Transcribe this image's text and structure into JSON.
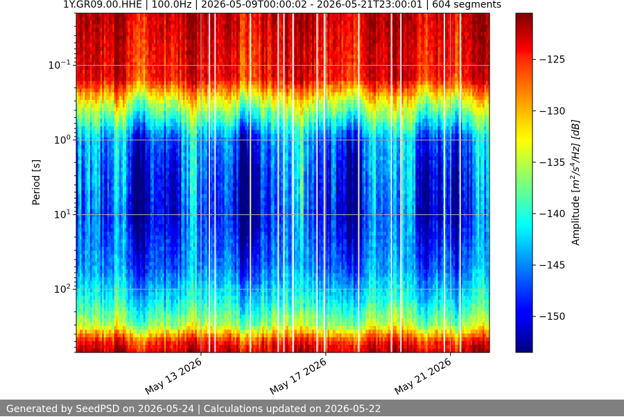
{
  "chart_data": {
    "type": "heatmap",
    "title": "1Y.GR09.00.HHE | 100.0Hz | 2026-05-09T00:00:02 - 2026-05-21T23:00:01 | 604 segments",
    "xlabel": "",
    "ylabel": "Period [s]",
    "x_range": [
      "2026-05-09",
      "2026-05-22T06:00"
    ],
    "x_ticks": [
      {
        "date": "2026-05-13",
        "label": "May 13 2026"
      },
      {
        "date": "2026-05-17",
        "label": "May 17 2026"
      },
      {
        "date": "2026-05-21",
        "label": "May 21 2026"
      }
    ],
    "y_scale": "log",
    "y_inverted": true,
    "y_range": [
      0.02,
      700
    ],
    "y_ticks": [
      {
        "value": 0.1,
        "base": "10",
        "exp": "−1"
      },
      {
        "value": 1,
        "base": "10",
        "exp": "0"
      },
      {
        "value": 10,
        "base": "10",
        "exp": "1"
      },
      {
        "value": 100,
        "base": "10",
        "exp": "2"
      }
    ],
    "grid": true,
    "colormap": "jet",
    "colorbar": {
      "label_prefix": "Amplitude [",
      "label_math": "m",
      "label_sup1": "2",
      "label_mid": "/s",
      "label_sup2": "4",
      "label_suffix": "/Hz] [dB]",
      "range": [
        -153.5,
        -120.5
      ],
      "ticks": [
        -125,
        -130,
        -135,
        -140,
        -145,
        -150
      ],
      "tick_labels": [
        "−125",
        "−130",
        "−135",
        "−140",
        "−145",
        "−150"
      ]
    },
    "psd_profile_by_period": [
      {
        "period": 0.02,
        "db": -123
      },
      {
        "period": 0.05,
        "db": -124
      },
      {
        "period": 0.15,
        "db": -125
      },
      {
        "period": 0.3,
        "db": -134
      },
      {
        "period": 1,
        "db": -146
      },
      {
        "period": 3,
        "db": -148
      },
      {
        "period": 10,
        "db": -149
      },
      {
        "period": 50,
        "db": -146
      },
      {
        "period": 150,
        "db": -141
      },
      {
        "period": 300,
        "db": -136
      },
      {
        "period": 500,
        "db": -126
      },
      {
        "period": 700,
        "db": -123
      }
    ]
  },
  "footer": {
    "text": "Generated by SeedPSD on 2026-05-24 | Calculations updated on 2026-05-22"
  }
}
